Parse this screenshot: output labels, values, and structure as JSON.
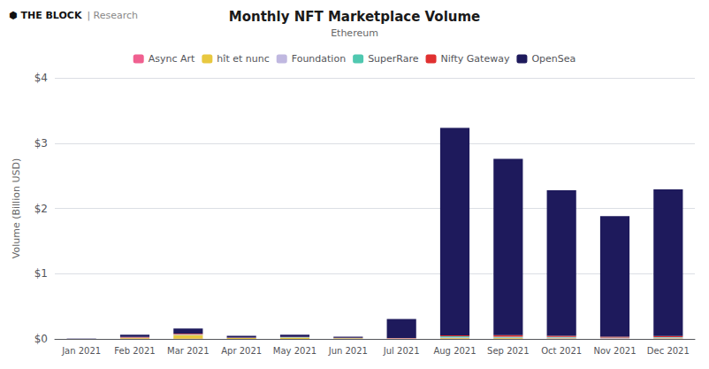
{
  "chart_data": {
    "type": "bar",
    "stacked": true,
    "title": "Monthly NFT Marketplace Volume",
    "subtitle": "Ethereum",
    "annotations": [
      "⬢ THE BLOCK",
      "| Research"
    ],
    "ylabel": "Volume (Billion USD)",
    "categories": [
      "Jan 2021",
      "Feb 2021",
      "Mar 2021",
      "Apr 2021",
      "May 2021",
      "Jun 2021",
      "Jul 2021",
      "Aug 2021",
      "Sep 2021",
      "Oct 2021",
      "Nov 2021",
      "Dec 2021"
    ],
    "series": [
      {
        "name": "Async Art",
        "color": "#f06090",
        "values": [
          0.001,
          0.002,
          0.003,
          0.001,
          0.001,
          0.001,
          0.002,
          0.003,
          0.003,
          0.003,
          0.002,
          0.003
        ]
      },
      {
        "name": "hît et nunc",
        "color": "#e8c840",
        "values": [
          0.0,
          0.012,
          0.055,
          0.012,
          0.018,
          0.008,
          0.004,
          0.012,
          0.01,
          0.008,
          0.006,
          0.008
        ]
      },
      {
        "name": "Foundation",
        "color": "#c0b8e0",
        "values": [
          0.001,
          0.004,
          0.008,
          0.003,
          0.004,
          0.003,
          0.003,
          0.01,
          0.008,
          0.008,
          0.006,
          0.008
        ]
      },
      {
        "name": "SuperRare",
        "color": "#50c8b0",
        "values": [
          0.001,
          0.003,
          0.004,
          0.002,
          0.003,
          0.002,
          0.002,
          0.015,
          0.012,
          0.01,
          0.007,
          0.009
        ]
      },
      {
        "name": "Nifty Gateway",
        "color": "#e03030",
        "values": [
          0.001,
          0.008,
          0.01,
          0.003,
          0.004,
          0.002,
          0.003,
          0.015,
          0.025,
          0.02,
          0.012,
          0.015
        ]
      },
      {
        "name": "OpenSea",
        "color": "#1e1a5c",
        "values": [
          0.004,
          0.035,
          0.08,
          0.025,
          0.035,
          0.018,
          0.29,
          3.18,
          2.7,
          2.23,
          1.85,
          2.25
        ]
      }
    ],
    "ylim": [
      0,
      4
    ],
    "yticks": [
      {
        "value": 0,
        "label": "$0"
      },
      {
        "value": 1,
        "label": "$1"
      },
      {
        "value": 2,
        "label": "$2"
      },
      {
        "value": 3,
        "label": "$3"
      },
      {
        "value": 4,
        "label": "$4"
      }
    ],
    "grid": true,
    "legend": "top"
  }
}
